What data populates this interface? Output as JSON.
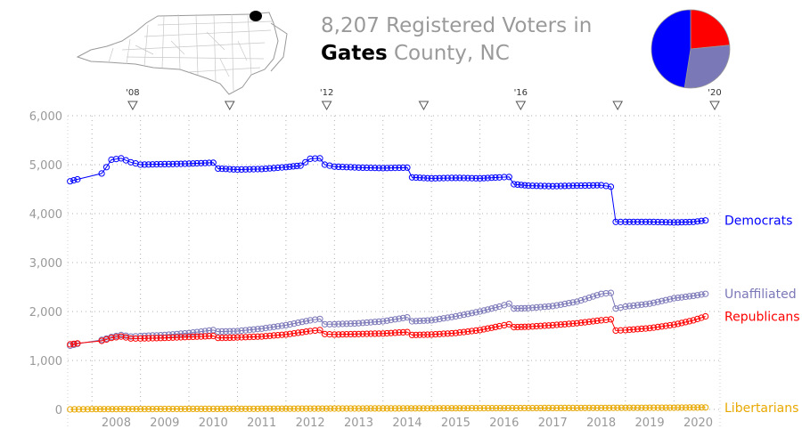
{
  "title": {
    "count": "8,207",
    "line1_rest": "Registered Voters in",
    "county": "Gates",
    "line2_rest": "County, NC"
  },
  "map": {
    "icon": "north-carolina-county-map-icon",
    "highlighted_county": "Gates"
  },
  "pie": {
    "slices": [
      {
        "name": "Republicans",
        "value": 1900,
        "color": "#ff0000"
      },
      {
        "name": "Unaffiliated",
        "value": 2350,
        "color": "#7b78b8"
      },
      {
        "name": "Democrats",
        "value": 3850,
        "color": "#0000ff"
      }
    ]
  },
  "chart_data": {
    "type": "line",
    "title": "",
    "xlabel": "",
    "ylabel": "",
    "xlim": [
      2007.5,
      2020.95
    ],
    "ylim": [
      0,
      6000
    ],
    "y_ticks": [
      "0",
      "1,000",
      "2,000",
      "3,000",
      "4,000",
      "5,000",
      "6,000"
    ],
    "x_year_labels": [
      "2008",
      "2009",
      "2010",
      "2011",
      "2012",
      "2013",
      "2014",
      "2015",
      "2016",
      "2017",
      "2018",
      "2019",
      "2020"
    ],
    "election_markers": [
      {
        "label": "'08",
        "x": 2008.84
      },
      {
        "label": "",
        "x": 2010.84
      },
      {
        "label": "'12",
        "x": 2012.84
      },
      {
        "label": "",
        "x": 2014.84
      },
      {
        "label": "'16",
        "x": 2016.84
      },
      {
        "label": "",
        "x": 2018.84
      },
      {
        "label": "'20",
        "x": 2020.84
      }
    ],
    "grid": true,
    "legend": "right-side line labels",
    "series": [
      {
        "name": "Democrats",
        "color": "#0000ff",
        "points": [
          [
            2007.55,
            4660
          ],
          [
            2007.7,
            4700
          ],
          [
            2008.2,
            4820
          ],
          [
            2008.3,
            4950
          ],
          [
            2008.4,
            5100
          ],
          [
            2008.6,
            5130
          ],
          [
            2008.8,
            5050
          ],
          [
            2009.0,
            5000
          ],
          [
            2009.5,
            5010
          ],
          [
            2010.0,
            5020
          ],
          [
            2010.5,
            5040
          ],
          [
            2010.6,
            4920
          ],
          [
            2011.0,
            4900
          ],
          [
            2011.5,
            4910
          ],
          [
            2012.0,
            4950
          ],
          [
            2012.3,
            4980
          ],
          [
            2012.5,
            5120
          ],
          [
            2012.7,
            5130
          ],
          [
            2012.8,
            5000
          ],
          [
            2013.0,
            4960
          ],
          [
            2013.5,
            4940
          ],
          [
            2014.0,
            4930
          ],
          [
            2014.5,
            4940
          ],
          [
            2014.6,
            4740
          ],
          [
            2015.0,
            4720
          ],
          [
            2015.5,
            4730
          ],
          [
            2016.0,
            4720
          ],
          [
            2016.4,
            4740
          ],
          [
            2016.6,
            4750
          ],
          [
            2016.7,
            4600
          ],
          [
            2017.0,
            4570
          ],
          [
            2017.5,
            4560
          ],
          [
            2018.0,
            4570
          ],
          [
            2018.5,
            4580
          ],
          [
            2018.7,
            4550
          ],
          [
            2018.8,
            3830
          ],
          [
            2019.0,
            3830
          ],
          [
            2019.5,
            3830
          ],
          [
            2020.0,
            3820
          ],
          [
            2020.4,
            3830
          ],
          [
            2020.65,
            3860
          ]
        ]
      },
      {
        "name": "Unaffiliated",
        "color": "#7b78b8",
        "points": [
          [
            2007.55,
            1300
          ],
          [
            2007.7,
            1340
          ],
          [
            2008.2,
            1420
          ],
          [
            2008.4,
            1480
          ],
          [
            2008.6,
            1520
          ],
          [
            2008.8,
            1490
          ],
          [
            2009.0,
            1500
          ],
          [
            2009.5,
            1520
          ],
          [
            2010.0,
            1560
          ],
          [
            2010.5,
            1620
          ],
          [
            2010.6,
            1590
          ],
          [
            2011.0,
            1600
          ],
          [
            2011.5,
            1650
          ],
          [
            2012.0,
            1720
          ],
          [
            2012.5,
            1820
          ],
          [
            2012.7,
            1850
          ],
          [
            2012.8,
            1740
          ],
          [
            2013.0,
            1740
          ],
          [
            2013.5,
            1760
          ],
          [
            2014.0,
            1800
          ],
          [
            2014.5,
            1880
          ],
          [
            2014.6,
            1800
          ],
          [
            2015.0,
            1820
          ],
          [
            2015.5,
            1900
          ],
          [
            2016.0,
            2000
          ],
          [
            2016.4,
            2100
          ],
          [
            2016.6,
            2160
          ],
          [
            2016.7,
            2060
          ],
          [
            2017.0,
            2070
          ],
          [
            2017.5,
            2110
          ],
          [
            2018.0,
            2200
          ],
          [
            2018.5,
            2360
          ],
          [
            2018.7,
            2380
          ],
          [
            2018.8,
            2060
          ],
          [
            2019.0,
            2100
          ],
          [
            2019.5,
            2160
          ],
          [
            2020.0,
            2270
          ],
          [
            2020.4,
            2320
          ],
          [
            2020.65,
            2360
          ]
        ]
      },
      {
        "name": "Republicans",
        "color": "#ff0000",
        "points": [
          [
            2007.55,
            1330
          ],
          [
            2007.7,
            1350
          ],
          [
            2008.2,
            1400
          ],
          [
            2008.4,
            1460
          ],
          [
            2008.6,
            1490
          ],
          [
            2008.8,
            1450
          ],
          [
            2009.0,
            1450
          ],
          [
            2009.5,
            1460
          ],
          [
            2010.0,
            1480
          ],
          [
            2010.5,
            1500
          ],
          [
            2010.6,
            1460
          ],
          [
            2011.0,
            1470
          ],
          [
            2011.5,
            1490
          ],
          [
            2012.0,
            1530
          ],
          [
            2012.5,
            1600
          ],
          [
            2012.7,
            1620
          ],
          [
            2012.8,
            1540
          ],
          [
            2013.0,
            1530
          ],
          [
            2013.5,
            1540
          ],
          [
            2014.0,
            1550
          ],
          [
            2014.5,
            1580
          ],
          [
            2014.6,
            1520
          ],
          [
            2015.0,
            1530
          ],
          [
            2015.5,
            1560
          ],
          [
            2016.0,
            1620
          ],
          [
            2016.4,
            1700
          ],
          [
            2016.6,
            1740
          ],
          [
            2016.7,
            1680
          ],
          [
            2017.0,
            1690
          ],
          [
            2017.5,
            1720
          ],
          [
            2018.0,
            1760
          ],
          [
            2018.5,
            1820
          ],
          [
            2018.7,
            1840
          ],
          [
            2018.8,
            1610
          ],
          [
            2019.0,
            1620
          ],
          [
            2019.5,
            1660
          ],
          [
            2020.0,
            1730
          ],
          [
            2020.4,
            1820
          ],
          [
            2020.65,
            1900
          ]
        ]
      },
      {
        "name": "Libertarians",
        "color": "#e8a800",
        "points": [
          [
            2007.55,
            0
          ],
          [
            2008.0,
            5
          ],
          [
            2010.0,
            10
          ],
          [
            2012.0,
            15
          ],
          [
            2014.0,
            20
          ],
          [
            2016.0,
            25
          ],
          [
            2018.0,
            30
          ],
          [
            2020.0,
            35
          ],
          [
            2020.65,
            40
          ]
        ]
      }
    ]
  }
}
